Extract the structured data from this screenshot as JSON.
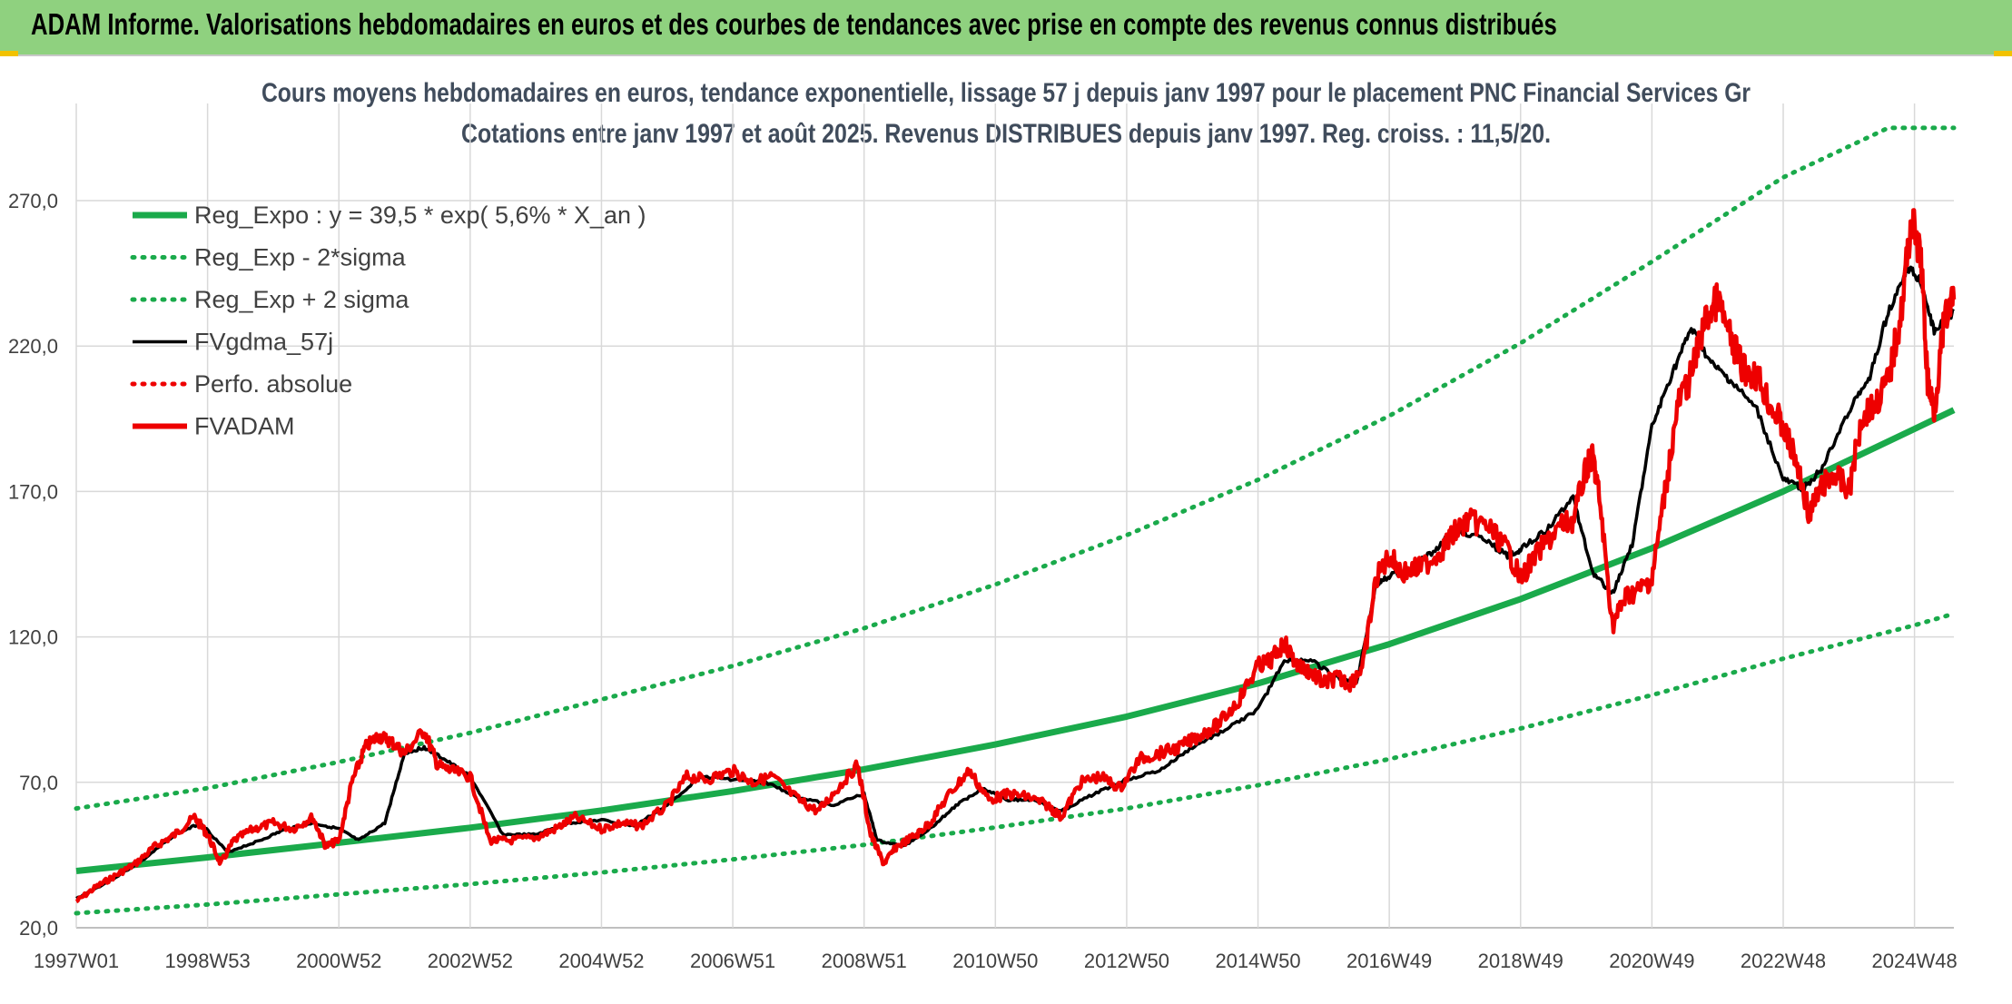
{
  "banner": {
    "title": "ADAM Informe. Valorisations hebdomadaires en euros et des courbes de tendances avec prise en compte des revenus connus distribués"
  },
  "colors": {
    "banner_bg": "#8fd17f",
    "green": "#1aaa4b",
    "black": "#000000",
    "red": "#ee0000",
    "grid": "#d9d9d9"
  },
  "chart_data": {
    "type": "line",
    "title": "Cours moyens hebdomadaires en euros, tendance exponentielle, lissage 57 j depuis janv 1997 pour le placement PNC Financial Services Gr",
    "subtitle": "Cotations entre janv 1997 et août 2025. Revenus DISTRIBUES depuis janv 1997. Reg. croiss. : 11,5/20.",
    "xlabel": "",
    "ylabel": "",
    "x_range": [
      1997.0,
      2025.6
    ],
    "ylim": [
      20,
      295
    ],
    "y_ticks": [
      20,
      70,
      120,
      170,
      220,
      270
    ],
    "y_tick_labels": [
      "20,0",
      "70,0",
      "120,0",
      "170,0",
      "220,0",
      "270,0"
    ],
    "x_ticks": [
      {
        "label": "1997W01",
        "x": 1997.0
      },
      {
        "label": "1998W53",
        "x": 1999.0
      },
      {
        "label": "2000W52",
        "x": 2001.0
      },
      {
        "label": "2002W52",
        "x": 2003.0
      },
      {
        "label": "2004W52",
        "x": 2005.0
      },
      {
        "label": "2006W51",
        "x": 2007.0
      },
      {
        "label": "2008W51",
        "x": 2009.0
      },
      {
        "label": "2010W50",
        "x": 2011.0
      },
      {
        "label": "2012W50",
        "x": 2013.0
      },
      {
        "label": "2014W50",
        "x": 2015.0
      },
      {
        "label": "2016W49",
        "x": 2017.0
      },
      {
        "label": "2018W49",
        "x": 2019.0
      },
      {
        "label": "2020W49",
        "x": 2021.0
      },
      {
        "label": "2022W48",
        "x": 2023.0
      },
      {
        "label": "2024W48",
        "x": 2025.0
      }
    ],
    "grid": true,
    "legend_position": "top-left",
    "series": [
      {
        "name": "Reg_Expo : y = 39,5 * exp( 5,6% *  X_an )",
        "style": "solid-thick",
        "color": "#1aaa4b",
        "x": [
          1997.0,
          1999.0,
          2001.0,
          2003.0,
          2005.0,
          2007.0,
          2009.0,
          2011.0,
          2013.0,
          2015.0,
          2017.0,
          2019.0,
          2021.0,
          2023.0,
          2025.0,
          2025.6
        ],
        "y": [
          39.5,
          44.2,
          49.2,
          54.4,
          60.3,
          67.0,
          74.5,
          83.0,
          92.6,
          104.0,
          117.5,
          133.0,
          150.5,
          170.0,
          191.5,
          198.0
        ]
      },
      {
        "name": "Reg_Exp - 2*sigma",
        "style": "dotted",
        "color": "#1aaa4b",
        "x": [
          1997.0,
          1999.0,
          2001.0,
          2003.0,
          2005.0,
          2007.0,
          2009.0,
          2011.0,
          2013.0,
          2015.0,
          2017.0,
          2019.0,
          2021.0,
          2023.0,
          2025.0,
          2025.6
        ],
        "y": [
          25.0,
          28.0,
          31.5,
          35.0,
          39.0,
          43.5,
          48.5,
          54.5,
          61.0,
          69.0,
          78.0,
          88.5,
          100.0,
          112.5,
          124.0,
          128.0
        ]
      },
      {
        "name": "Reg_Exp + 2 sigma",
        "style": "dotted",
        "color": "#1aaa4b",
        "x": [
          1997.0,
          1999.0,
          2001.0,
          2003.0,
          2005.0,
          2007.0,
          2009.0,
          2011.0,
          2013.0,
          2015.0,
          2017.0,
          2019.0,
          2021.0,
          2023.0,
          2024.6,
          2025.6
        ],
        "y": [
          61.0,
          68.0,
          77.0,
          87.0,
          98.5,
          110.0,
          123.0,
          138.0,
          155.0,
          174.0,
          196.0,
          221.0,
          249.0,
          278.0,
          295.0,
          295.0
        ]
      },
      {
        "name": "FVgdma_57j",
        "style": "solid",
        "color": "#000000",
        "x": [
          1997.0,
          1997.5,
          1998.0,
          1998.5,
          1998.9,
          1999.3,
          1999.8,
          2000.2,
          2000.6,
          2001.0,
          2001.3,
          2001.7,
          2002.0,
          2002.3,
          2002.6,
          2003.0,
          2003.5,
          2004.0,
          2004.5,
          2005.0,
          2005.5,
          2006.0,
          2006.5,
          2007.0,
          2007.5,
          2008.0,
          2008.5,
          2009.0,
          2009.2,
          2009.6,
          2010.0,
          2010.4,
          2010.8,
          2011.2,
          2011.6,
          2012.0,
          2012.5,
          2013.0,
          2013.5,
          2014.0,
          2014.5,
          2015.0,
          2015.4,
          2015.8,
          2016.2,
          2016.5,
          2016.8,
          2017.0,
          2017.3,
          2017.7,
          2018.0,
          2018.4,
          2018.8,
          2019.0,
          2019.4,
          2019.8,
          2020.1,
          2020.4,
          2020.7,
          2021.0,
          2021.3,
          2021.6,
          2021.9,
          2022.2,
          2022.6,
          2023.0,
          2023.3,
          2023.6,
          2024.0,
          2024.3,
          2024.6,
          2024.9,
          2025.1,
          2025.3,
          2025.6
        ],
        "y": [
          30.0,
          36.0,
          43.0,
          52.0,
          56.0,
          46.0,
          50.0,
          54.0,
          56.0,
          54.0,
          50.0,
          56.0,
          80.0,
          82.0,
          78.0,
          72.0,
          52.0,
          52.0,
          56.0,
          57.0,
          55.0,
          62.0,
          72.0,
          71.0,
          70.0,
          65.0,
          62.0,
          66.0,
          50.0,
          48.0,
          54.0,
          62.0,
          68.0,
          64.0,
          64.0,
          60.0,
          66.0,
          71.0,
          74.0,
          82.0,
          88.0,
          95.0,
          112.0,
          112.0,
          106.0,
          104.0,
          138.0,
          141.0,
          143.0,
          150.0,
          157.0,
          154.0,
          148.0,
          150.0,
          157.0,
          168.0,
          142.0,
          135.0,
          152.0,
          192.0,
          210.0,
          226.0,
          214.0,
          208.0,
          198.0,
          174.0,
          171.0,
          178.0,
          198.0,
          208.0,
          232.0,
          247.0,
          242.0,
          225.0,
          232.0
        ]
      },
      {
        "name": "Perfo. absolue",
        "style": "dotted",
        "color": "#ee0000",
        "x": [],
        "y": []
      },
      {
        "name": "FVADAM",
        "style": "solid-thick",
        "color": "#ee0000",
        "x": [
          1997.0,
          1997.3,
          1997.6,
          1997.9,
          1998.2,
          1998.5,
          1998.8,
          1999.0,
          1999.2,
          1999.4,
          1999.7,
          2000.0,
          2000.3,
          2000.6,
          2000.8,
          2001.0,
          2001.2,
          2001.4,
          2001.6,
          2001.8,
          2002.0,
          2002.3,
          2002.5,
          2002.7,
          2003.0,
          2003.3,
          2003.6,
          2004.0,
          2004.3,
          2004.6,
          2005.0,
          2005.3,
          2005.6,
          2006.0,
          2006.3,
          2006.6,
          2007.0,
          2007.3,
          2007.6,
          2008.0,
          2008.3,
          2008.6,
          2008.9,
          2009.1,
          2009.3,
          2009.5,
          2009.8,
          2010.0,
          2010.3,
          2010.6,
          2010.9,
          2011.2,
          2011.5,
          2011.8,
          2012.0,
          2012.3,
          2012.6,
          2012.9,
          2013.2,
          2013.5,
          2013.8,
          2014.1,
          2014.4,
          2014.7,
          2015.0,
          2015.2,
          2015.4,
          2015.6,
          2015.8,
          2016.0,
          2016.2,
          2016.4,
          2016.6,
          2016.8,
          2017.0,
          2017.2,
          2017.5,
          2017.8,
          2018.0,
          2018.2,
          2018.5,
          2018.8,
          2019.0,
          2019.3,
          2019.6,
          2019.8,
          2020.0,
          2020.1,
          2020.2,
          2020.4,
          2020.6,
          2020.8,
          2021.0,
          2021.2,
          2021.4,
          2021.6,
          2021.8,
          2022.0,
          2022.2,
          2022.4,
          2022.6,
          2022.8,
          2023.0,
          2023.2,
          2023.4,
          2023.6,
          2023.8,
          2024.0,
          2024.2,
          2024.4,
          2024.6,
          2024.8,
          2024.95,
          2025.1,
          2025.2,
          2025.3,
          2025.45,
          2025.6
        ],
        "y": [
          29.0,
          34.0,
          38.0,
          42.0,
          48.0,
          52.0,
          58.0,
          52.0,
          42.0,
          50.0,
          54.0,
          56.0,
          54.0,
          58.0,
          48.0,
          50.0,
          70.0,
          82.0,
          86.0,
          84.0,
          80.0,
          88.0,
          76.0,
          74.0,
          72.0,
          50.0,
          50.0,
          51.0,
          54.0,
          58.0,
          54.0,
          56.0,
          55.0,
          62.0,
          72.0,
          71.0,
          74.0,
          70.0,
          72.0,
          64.0,
          60.0,
          68.0,
          76.0,
          52.0,
          42.0,
          48.0,
          52.0,
          56.0,
          66.0,
          74.0,
          64.0,
          66.0,
          65.0,
          62.0,
          58.0,
          70.0,
          72.0,
          68.0,
          78.0,
          80.0,
          82.0,
          86.0,
          90.0,
          98.0,
          110.0,
          112.0,
          118.0,
          110.0,
          108.0,
          104.0,
          106.0,
          104.0,
          110.0,
          140.0,
          148.0,
          142.0,
          144.0,
          150.0,
          156.0,
          160.0,
          158.0,
          150.0,
          140.0,
          150.0,
          158.0,
          160.0,
          178.0,
          182.0,
          168.0,
          124.0,
          134.0,
          136.0,
          140.0,
          170.0,
          200.0,
          210.0,
          228.0,
          236.0,
          222.0,
          212.0,
          210.0,
          200.0,
          192.0,
          180.0,
          162.0,
          172.0,
          176.0,
          170.0,
          196.0,
          200.0,
          208.0,
          232.0,
          264.0,
          250.0,
          208.0,
          198.0,
          228.0,
          236.0
        ]
      }
    ]
  }
}
